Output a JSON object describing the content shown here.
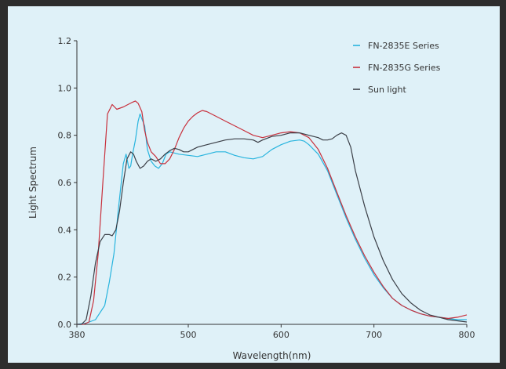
{
  "chart_data": {
    "type": "line",
    "title": "",
    "xlabel": "Wavelength(nm)",
    "ylabel": "Light Spectrum",
    "xlim": [
      380,
      800
    ],
    "ylim": [
      0,
      1.2
    ],
    "x_ticks": [
      380,
      500,
      600,
      700,
      800
    ],
    "y_ticks": [
      "0.0",
      "0.2",
      "0.4",
      "0.6",
      "0.8",
      "1.0",
      "1.2"
    ],
    "legend_position": "top-right",
    "grid": false,
    "series": [
      {
        "name": "FN-2835E Series",
        "color": "#27b4de",
        "points": [
          [
            380,
            0
          ],
          [
            390,
            0.005
          ],
          [
            400,
            0.02
          ],
          [
            410,
            0.08
          ],
          [
            415,
            0.18
          ],
          [
            420,
            0.3
          ],
          [
            425,
            0.5
          ],
          [
            430,
            0.68
          ],
          [
            433,
            0.72
          ],
          [
            436,
            0.66
          ],
          [
            438,
            0.67
          ],
          [
            440,
            0.72
          ],
          [
            443,
            0.78
          ],
          [
            446,
            0.86
          ],
          [
            448,
            0.89
          ],
          [
            450,
            0.87
          ],
          [
            453,
            0.84
          ],
          [
            456,
            0.74
          ],
          [
            460,
            0.69
          ],
          [
            464,
            0.67
          ],
          [
            468,
            0.66
          ],
          [
            472,
            0.68
          ],
          [
            476,
            0.72
          ],
          [
            480,
            0.73
          ],
          [
            490,
            0.72
          ],
          [
            500,
            0.715
          ],
          [
            510,
            0.71
          ],
          [
            520,
            0.72
          ],
          [
            530,
            0.73
          ],
          [
            540,
            0.73
          ],
          [
            550,
            0.715
          ],
          [
            560,
            0.705
          ],
          [
            570,
            0.7
          ],
          [
            580,
            0.71
          ],
          [
            590,
            0.74
          ],
          [
            600,
            0.76
          ],
          [
            610,
            0.775
          ],
          [
            620,
            0.78
          ],
          [
            625,
            0.775
          ],
          [
            630,
            0.76
          ],
          [
            640,
            0.72
          ],
          [
            650,
            0.65
          ],
          [
            660,
            0.55
          ],
          [
            670,
            0.45
          ],
          [
            680,
            0.36
          ],
          [
            690,
            0.28
          ],
          [
            700,
            0.21
          ],
          [
            710,
            0.155
          ],
          [
            720,
            0.11
          ],
          [
            730,
            0.08
          ],
          [
            740,
            0.06
          ],
          [
            750,
            0.045
          ],
          [
            760,
            0.035
          ],
          [
            770,
            0.03
          ],
          [
            780,
            0.025
          ],
          [
            790,
            0.02
          ],
          [
            800,
            0.02
          ]
        ]
      },
      {
        "name": "FN-2835G Series",
        "color": "#c8303c",
        "points": [
          [
            380,
            0
          ],
          [
            387,
            0
          ],
          [
            393,
            0.01
          ],
          [
            398,
            0.1
          ],
          [
            403,
            0.3
          ],
          [
            408,
            0.6
          ],
          [
            413,
            0.89
          ],
          [
            418,
            0.93
          ],
          [
            423,
            0.91
          ],
          [
            430,
            0.92
          ],
          [
            440,
            0.94
          ],
          [
            443,
            0.945
          ],
          [
            446,
            0.935
          ],
          [
            450,
            0.9
          ],
          [
            453,
            0.82
          ],
          [
            456,
            0.77
          ],
          [
            460,
            0.73
          ],
          [
            465,
            0.71
          ],
          [
            470,
            0.68
          ],
          [
            475,
            0.68
          ],
          [
            480,
            0.7
          ],
          [
            485,
            0.74
          ],
          [
            490,
            0.79
          ],
          [
            495,
            0.83
          ],
          [
            500,
            0.86
          ],
          [
            505,
            0.88
          ],
          [
            510,
            0.895
          ],
          [
            515,
            0.905
          ],
          [
            520,
            0.9
          ],
          [
            530,
            0.88
          ],
          [
            540,
            0.86
          ],
          [
            550,
            0.84
          ],
          [
            560,
            0.82
          ],
          [
            570,
            0.8
          ],
          [
            580,
            0.79
          ],
          [
            590,
            0.8
          ],
          [
            600,
            0.81
          ],
          [
            610,
            0.815
          ],
          [
            620,
            0.81
          ],
          [
            630,
            0.79
          ],
          [
            640,
            0.74
          ],
          [
            650,
            0.66
          ],
          [
            660,
            0.56
          ],
          [
            670,
            0.46
          ],
          [
            680,
            0.37
          ],
          [
            690,
            0.29
          ],
          [
            700,
            0.22
          ],
          [
            710,
            0.16
          ],
          [
            720,
            0.11
          ],
          [
            730,
            0.08
          ],
          [
            740,
            0.06
          ],
          [
            750,
            0.045
          ],
          [
            760,
            0.035
          ],
          [
            770,
            0.03
          ],
          [
            780,
            0.025
          ],
          [
            790,
            0.03
          ],
          [
            800,
            0.04
          ]
        ]
      },
      {
        "name": "Sun light",
        "color": "#3b3f47",
        "points": [
          [
            380,
            0
          ],
          [
            385,
            0
          ],
          [
            390,
            0.02
          ],
          [
            395,
            0.12
          ],
          [
            400,
            0.26
          ],
          [
            405,
            0.35
          ],
          [
            410,
            0.38
          ],
          [
            415,
            0.38
          ],
          [
            418,
            0.375
          ],
          [
            422,
            0.4
          ],
          [
            426,
            0.48
          ],
          [
            430,
            0.6
          ],
          [
            434,
            0.7
          ],
          [
            438,
            0.73
          ],
          [
            441,
            0.72
          ],
          [
            444,
            0.69
          ],
          [
            448,
            0.66
          ],
          [
            452,
            0.67
          ],
          [
            456,
            0.69
          ],
          [
            460,
            0.7
          ],
          [
            465,
            0.69
          ],
          [
            470,
            0.7
          ],
          [
            475,
            0.72
          ],
          [
            480,
            0.735
          ],
          [
            485,
            0.745
          ],
          [
            490,
            0.74
          ],
          [
            495,
            0.73
          ],
          [
            500,
            0.73
          ],
          [
            505,
            0.74
          ],
          [
            510,
            0.75
          ],
          [
            520,
            0.76
          ],
          [
            530,
            0.77
          ],
          [
            540,
            0.78
          ],
          [
            550,
            0.785
          ],
          [
            560,
            0.785
          ],
          [
            570,
            0.78
          ],
          [
            575,
            0.77
          ],
          [
            580,
            0.78
          ],
          [
            590,
            0.795
          ],
          [
            600,
            0.8
          ],
          [
            610,
            0.81
          ],
          [
            620,
            0.81
          ],
          [
            630,
            0.8
          ],
          [
            640,
            0.79
          ],
          [
            645,
            0.78
          ],
          [
            650,
            0.78
          ],
          [
            655,
            0.785
          ],
          [
            660,
            0.8
          ],
          [
            665,
            0.81
          ],
          [
            670,
            0.8
          ],
          [
            675,
            0.75
          ],
          [
            680,
            0.65
          ],
          [
            690,
            0.5
          ],
          [
            700,
            0.37
          ],
          [
            710,
            0.27
          ],
          [
            720,
            0.19
          ],
          [
            730,
            0.13
          ],
          [
            740,
            0.09
          ],
          [
            750,
            0.06
          ],
          [
            760,
            0.04
          ],
          [
            770,
            0.03
          ],
          [
            780,
            0.02
          ],
          [
            790,
            0.015
          ],
          [
            800,
            0.01
          ]
        ]
      }
    ]
  }
}
